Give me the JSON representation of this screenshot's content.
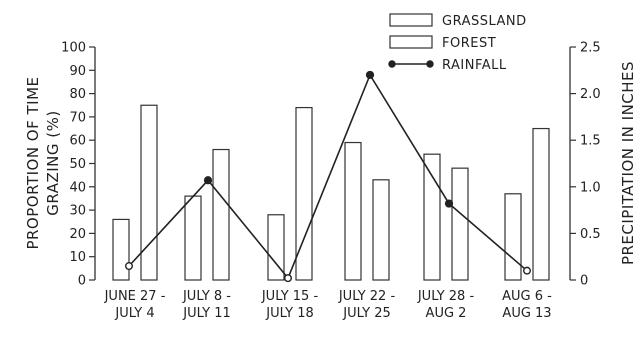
{
  "chart_data": {
    "type": "bar",
    "categories": [
      [
        "JUNE 27 -",
        "JULY 4"
      ],
      [
        "JULY 8 -",
        "JULY 11"
      ],
      [
        "JULY 15 -",
        "JULY 18"
      ],
      [
        "JULY 22 -",
        "JULY 25"
      ],
      [
        "JULY 28 -",
        "AUG 2"
      ],
      [
        "AUG 6 -",
        "AUG 13"
      ]
    ],
    "series": [
      {
        "name": "GRASSLAND",
        "type": "bar",
        "axis": "left",
        "values": [
          26,
          36,
          28,
          59,
          54,
          37
        ]
      },
      {
        "name": "FOREST",
        "type": "bar",
        "axis": "left",
        "values": [
          75,
          56,
          74,
          43,
          48,
          65
        ]
      },
      {
        "name": "RAINFALL",
        "type": "line",
        "axis": "right",
        "values": [
          0.15,
          1.07,
          0.02,
          2.2,
          0.82,
          0.1
        ]
      }
    ],
    "ylabel": [
      "PROPORTION OF TIME",
      "GRAZING (%)"
    ],
    "y2label": "PRECIPITATION IN INCHES",
    "ylim": [
      0,
      100
    ],
    "y2lim": [
      0,
      2.5
    ],
    "yticks": [
      "0",
      "10",
      "20",
      "30",
      "40",
      "50",
      "60",
      "70",
      "80",
      "90",
      "100"
    ],
    "y2ticks": [
      "0",
      "0.5",
      "1.0",
      "1.5",
      "2.0",
      "2.5"
    ],
    "grid": false,
    "legend_position": "top-right"
  }
}
